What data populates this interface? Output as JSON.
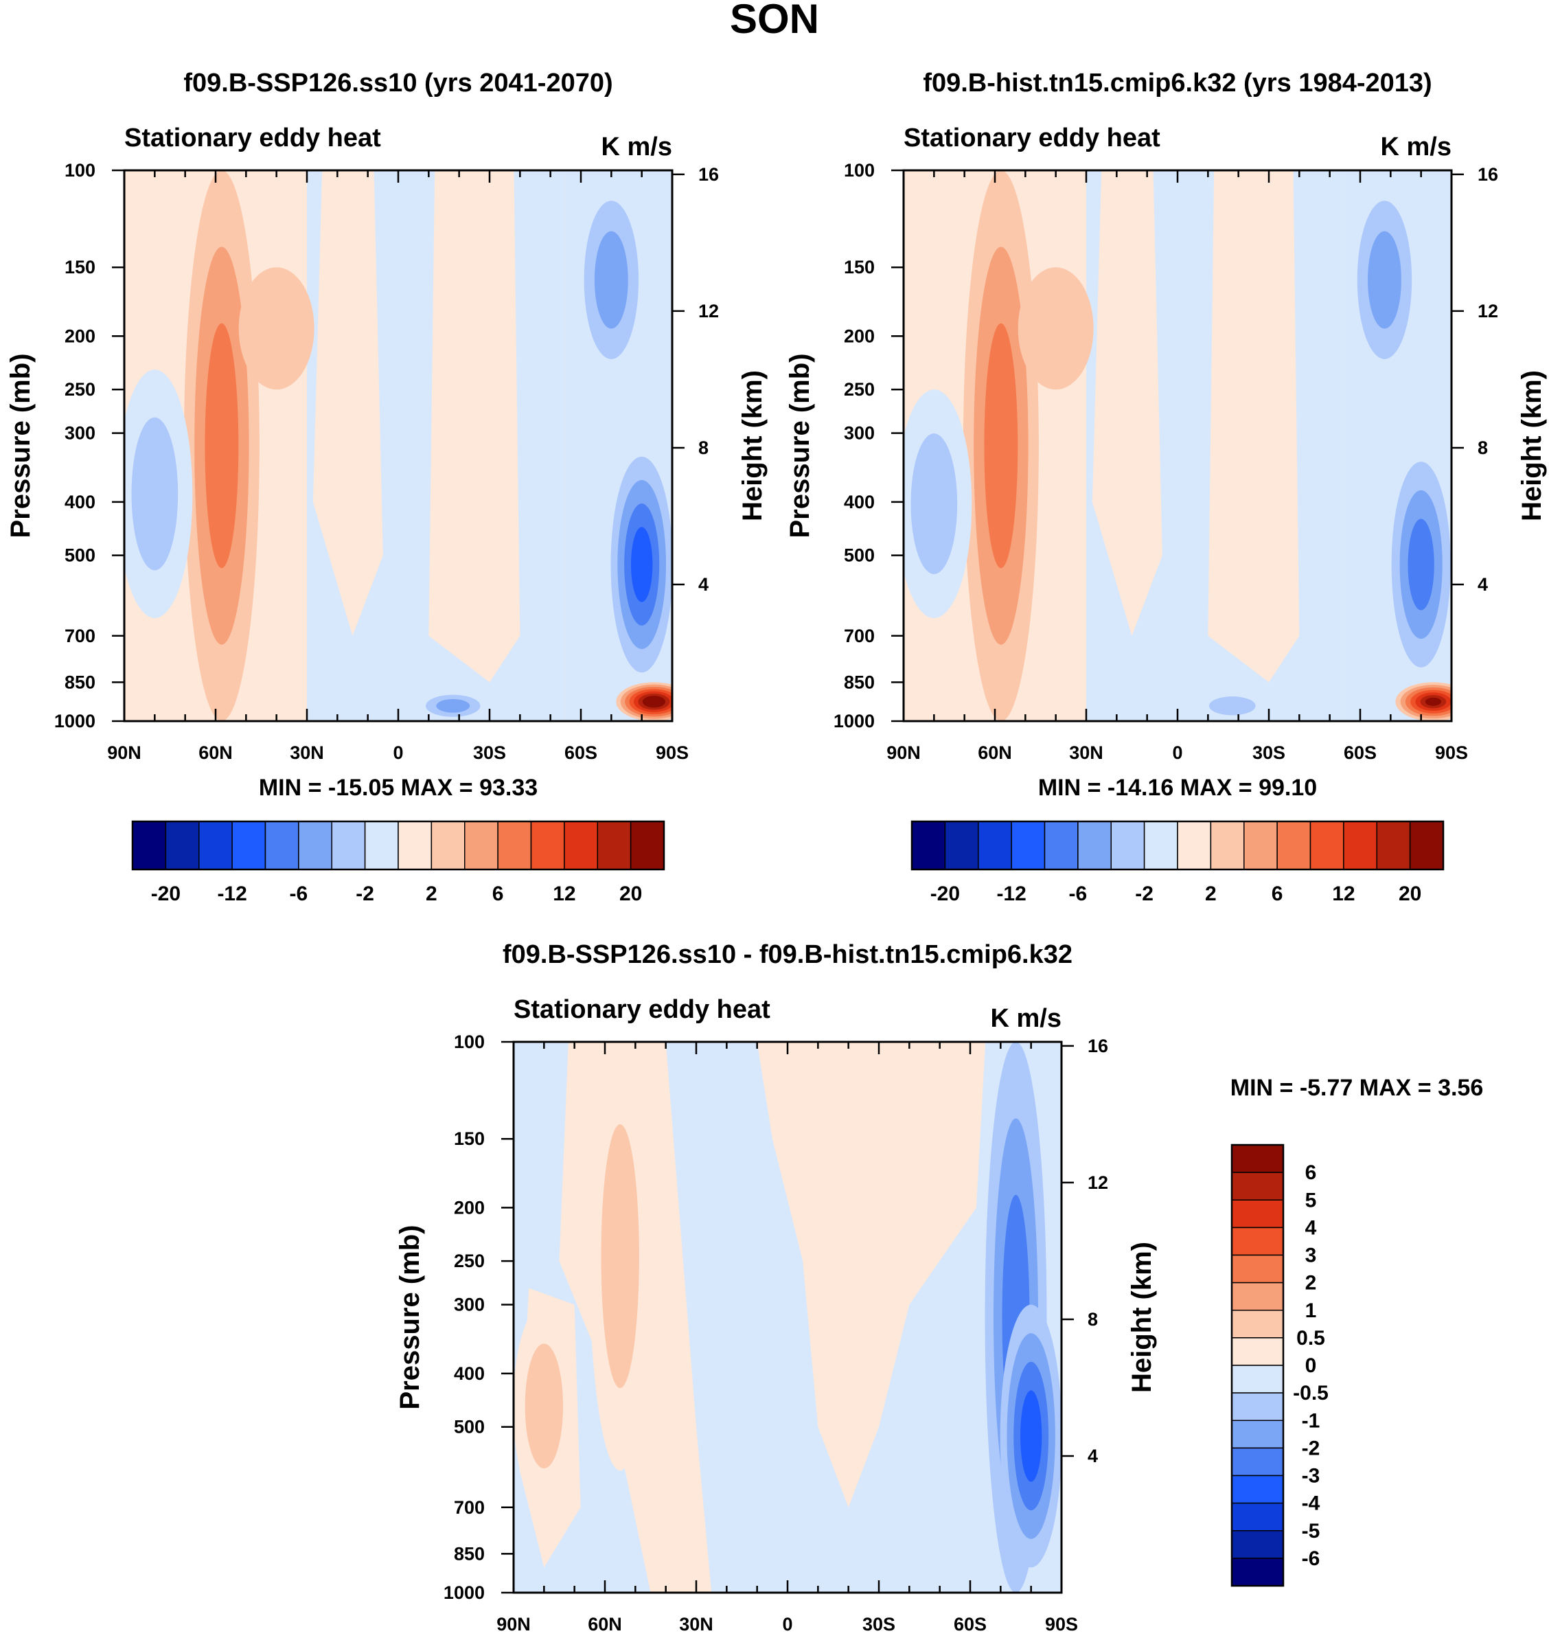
{
  "figure": {
    "title": "SON"
  },
  "colors": {
    "abs_scale": [
      "#00007a",
      "#0624a8",
      "#0e3fdc",
      "#1f5cff",
      "#4a7ef4",
      "#7ba6f5",
      "#adc9fb",
      "#d8e8fc",
      "#fde8d9",
      "#fbc8ac",
      "#f6a17a",
      "#f47a4d",
      "#f0532a",
      "#df3415",
      "#b3220d",
      "#8b0c02"
    ],
    "diff_scale": [
      "#00007a",
      "#0624a8",
      "#0e3fdc",
      "#1f5cff",
      "#4a7ef4",
      "#7ba6f5",
      "#adc9fb",
      "#d8e8fc",
      "#fde8d9",
      "#fbc8ac",
      "#f6a17a",
      "#f47a4d",
      "#f0532a",
      "#df3415",
      "#b3220d",
      "#8b0c02"
    ]
  },
  "chart_data": [
    {
      "type": "heatmap",
      "panel": "top-left",
      "title": "f09.B-SSP126.ss10 (yrs 2041-2070)",
      "left_string": "Stationary eddy heat",
      "units": "K m/s",
      "xlabel": "",
      "ylabel": "Pressure (mb)",
      "y2label": "Height (km)",
      "x_ticks": [
        "90N",
        "60N",
        "30N",
        "0",
        "30S",
        "60S",
        "90S"
      ],
      "x_range": [
        90,
        -90
      ],
      "y_ticks": [
        100,
        150,
        200,
        250,
        300,
        400,
        500,
        700,
        850,
        1000
      ],
      "y_range": [
        100,
        1000
      ],
      "y2_ticks": [
        16,
        12,
        8,
        4
      ],
      "min": "-15.05",
      "max": "93.33",
      "stats_text": "MIN = -15.05  MAX =  93.33",
      "contour_levels": [
        -20,
        -16,
        -12,
        -9,
        -6,
        -4,
        -2,
        -1,
        0,
        1,
        2,
        4,
        6,
        9,
        12,
        16,
        20
      ],
      "label_levels": [
        "-20",
        "-12",
        "-6",
        "-2",
        "2",
        "6",
        "12",
        "20"
      ],
      "features": [
        {
          "lat": 58,
          "p_top": 100,
          "p_bottom": 1000,
          "sign": "positive",
          "peak_level": 4
        },
        {
          "lat": 40,
          "p_top": 150,
          "p_bottom": 250,
          "sign": "positive",
          "peak_level": 1
        },
        {
          "lat": -70,
          "p_top": 100,
          "p_bottom": 250,
          "sign": "negative",
          "peak_level": -4
        },
        {
          "lat": -80,
          "p_top": 300,
          "p_bottom": 900,
          "sign": "negative",
          "peak_level": -9
        },
        {
          "lat": -84,
          "p_top": 850,
          "p_bottom": 1000,
          "sign": "positive",
          "peak_level": 20
        },
        {
          "lat": 80,
          "p_top": 230,
          "p_bottom": 650,
          "sign": "negative",
          "peak_level": -2
        },
        {
          "lat": -18,
          "p_top": 880,
          "p_bottom": 1000,
          "sign": "negative",
          "peak_level": -4
        }
      ]
    },
    {
      "type": "heatmap",
      "panel": "top-right",
      "title": "f09.B-hist.tn15.cmip6.k32 (yrs 1984-2013)",
      "left_string": "Stationary eddy heat",
      "units": "K m/s",
      "xlabel": "",
      "ylabel": "Pressure (mb)",
      "y2label": "Height (km)",
      "x_ticks": [
        "90N",
        "60N",
        "30N",
        "0",
        "30S",
        "60S",
        "90S"
      ],
      "x_range": [
        90,
        -90
      ],
      "y_ticks": [
        100,
        150,
        200,
        250,
        300,
        400,
        500,
        700,
        850,
        1000
      ],
      "y_range": [
        100,
        1000
      ],
      "y2_ticks": [
        16,
        12,
        8,
        4
      ],
      "min": "-14.16",
      "max": "99.10",
      "stats_text": "MIN = -14.16  MAX =  99.10",
      "contour_levels": [
        -20,
        -16,
        -12,
        -9,
        -6,
        -4,
        -2,
        -1,
        0,
        1,
        2,
        4,
        6,
        9,
        12,
        16,
        20
      ],
      "label_levels": [
        "-20",
        "-12",
        "-6",
        "-2",
        "2",
        "6",
        "12",
        "20"
      ],
      "features": [
        {
          "lat": 58,
          "p_top": 100,
          "p_bottom": 1000,
          "sign": "positive",
          "peak_level": 4
        },
        {
          "lat": 40,
          "p_top": 150,
          "p_bottom": 250,
          "sign": "positive",
          "peak_level": 1
        },
        {
          "lat": -68,
          "p_top": 100,
          "p_bottom": 250,
          "sign": "negative",
          "peak_level": -4
        },
        {
          "lat": -80,
          "p_top": 300,
          "p_bottom": 900,
          "sign": "negative",
          "peak_level": -6
        },
        {
          "lat": -84,
          "p_top": 850,
          "p_bottom": 1000,
          "sign": "positive",
          "peak_level": 16
        },
        {
          "lat": 80,
          "p_top": 250,
          "p_bottom": 650,
          "sign": "negative",
          "peak_level": -2
        },
        {
          "lat": -18,
          "p_top": 880,
          "p_bottom": 1000,
          "sign": "negative",
          "peak_level": -2
        }
      ]
    },
    {
      "type": "heatmap",
      "panel": "bottom",
      "title": "f09.B-SSP126.ss10 - f09.B-hist.tn15.cmip6.k32",
      "left_string": "Stationary eddy heat",
      "units": "K m/s",
      "xlabel": "",
      "ylabel": "Pressure (mb)",
      "y2label": "Height (km)",
      "x_ticks": [
        "90N",
        "60N",
        "30N",
        "0",
        "30S",
        "60S",
        "90S"
      ],
      "x_range": [
        90,
        -90
      ],
      "y_ticks": [
        100,
        150,
        200,
        250,
        300,
        400,
        500,
        700,
        850,
        1000
      ],
      "y_range": [
        100,
        1000
      ],
      "y2_ticks": [
        16,
        12,
        8,
        4
      ],
      "min": "-5.77",
      "max": "3.56",
      "stats_text": "MIN =  -5.77  MAX =   3.56",
      "contour_levels": [
        -6,
        -5,
        -4,
        -3,
        -2,
        -1,
        -0.5,
        0,
        0.5,
        1,
        2,
        3,
        4,
        5,
        6
      ],
      "label_levels": [
        "6",
        "5",
        "4",
        "3",
        "2",
        "1",
        "0.5",
        "0",
        "-0.5",
        "-1",
        "-2",
        "-3",
        "-4",
        "-5",
        "-6"
      ],
      "features": [
        {
          "lat": 55,
          "p_top": 100,
          "p_bottom": 600,
          "sign": "positive",
          "peak_level": 1
        },
        {
          "lat": -75,
          "p_top": 100,
          "p_bottom": 1000,
          "sign": "negative",
          "peak_level": -2
        },
        {
          "lat": -80,
          "p_top": 300,
          "p_bottom": 900,
          "sign": "negative",
          "peak_level": -3
        },
        {
          "lat": 80,
          "p_top": 300,
          "p_bottom": 700,
          "sign": "positive",
          "peak_level": 1
        }
      ]
    }
  ]
}
